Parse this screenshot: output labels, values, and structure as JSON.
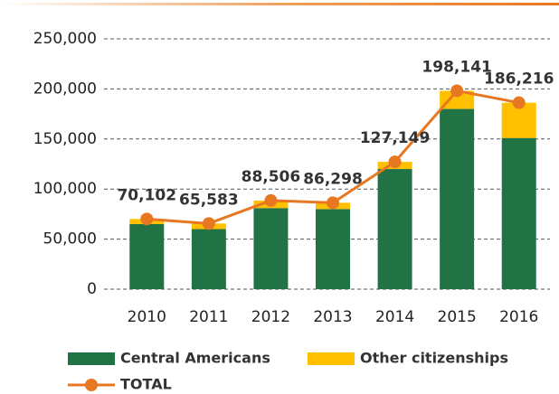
{
  "chart_data": {
    "type": "stacked_bar_line",
    "categories": [
      "2010",
      "2011",
      "2012",
      "2013",
      "2014",
      "2015",
      "2016"
    ],
    "series": [
      {
        "name": "Central Americans",
        "color": "#217346",
        "values": [
          65000,
          60000,
          81000,
          80000,
          120000,
          180000,
          151000
        ]
      },
      {
        "name": "Other citizenships",
        "color": "#ffc000",
        "values": [
          5102,
          5583,
          7506,
          6298,
          7149,
          18141,
          35216
        ]
      },
      {
        "name": "TOTAL",
        "type": "line",
        "color": "#e87722",
        "values": [
          70102,
          65583,
          88506,
          86298,
          127149,
          198141,
          186216
        ],
        "value_labels": [
          "70,102",
          "65,583",
          "88,506",
          "86,298",
          "127,149",
          "198,141",
          "186,216"
        ]
      }
    ],
    "ylim": [
      0,
      250000
    ],
    "yticks": [
      0,
      {
        "value": 50000,
        "label": "50,000"
      },
      {
        "value": 100000,
        "label": "100,000"
      },
      {
        "value": 150000,
        "label": "150,000"
      },
      {
        "value": 200000,
        "label": "200,000"
      },
      {
        "value": 250000,
        "label": "250,000"
      }
    ],
    "grid": true
  }
}
